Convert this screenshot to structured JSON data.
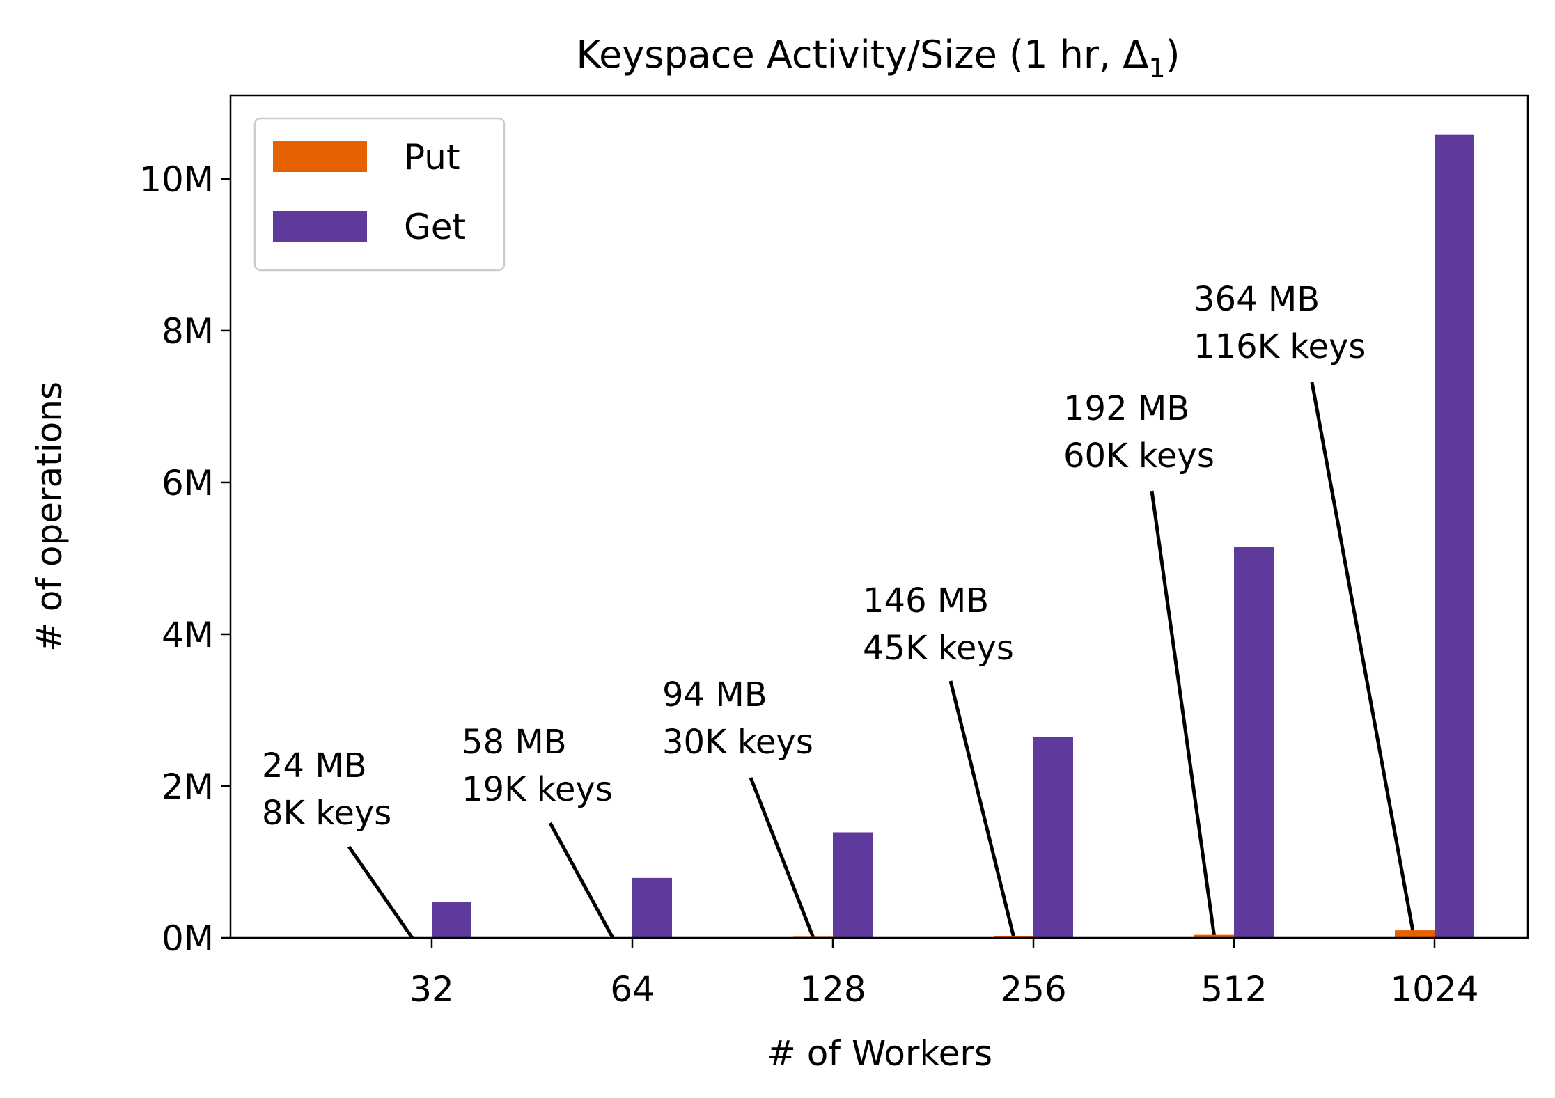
{
  "chart_data": {
    "type": "bar",
    "title": "Keyspace Activity/Size (1 hr, Δ",
    "title_subscript": "1",
    "title_suffix": ")",
    "xlabel": "# of Workers",
    "ylabel": "# of operations",
    "categories": [
      "32",
      "64",
      "128",
      "256",
      "512",
      "1024"
    ],
    "series": [
      {
        "name": "Put",
        "color": "#e66100",
        "values": [
          2000,
          5000,
          15000,
          28000,
          40000,
          100000
        ]
      },
      {
        "name": "Get",
        "color": "#5d3a9b",
        "values": [
          470000,
          790000,
          1390000,
          2650000,
          5150000,
          10580000
        ]
      }
    ],
    "ylim": [
      0,
      11100000
    ],
    "yticks": [
      0,
      2000000,
      4000000,
      6000000,
      8000000,
      10000000
    ],
    "ytick_labels": [
      "0M",
      "2M",
      "4M",
      "6M",
      "8M",
      "10M"
    ],
    "legend_position": "top-left",
    "grid": false,
    "annotations": [
      {
        "category": "32",
        "line1": "24 MB",
        "line2": "8K keys"
      },
      {
        "category": "64",
        "line1": "58 MB",
        "line2": "19K keys"
      },
      {
        "category": "128",
        "line1": "94 MB",
        "line2": "30K keys"
      },
      {
        "category": "256",
        "line1": "146 MB",
        "line2": "45K keys"
      },
      {
        "category": "512",
        "line1": "192 MB",
        "line2": "60K keys"
      },
      {
        "category": "1024",
        "line1": "364 MB",
        "line2": "116K keys"
      }
    ]
  }
}
